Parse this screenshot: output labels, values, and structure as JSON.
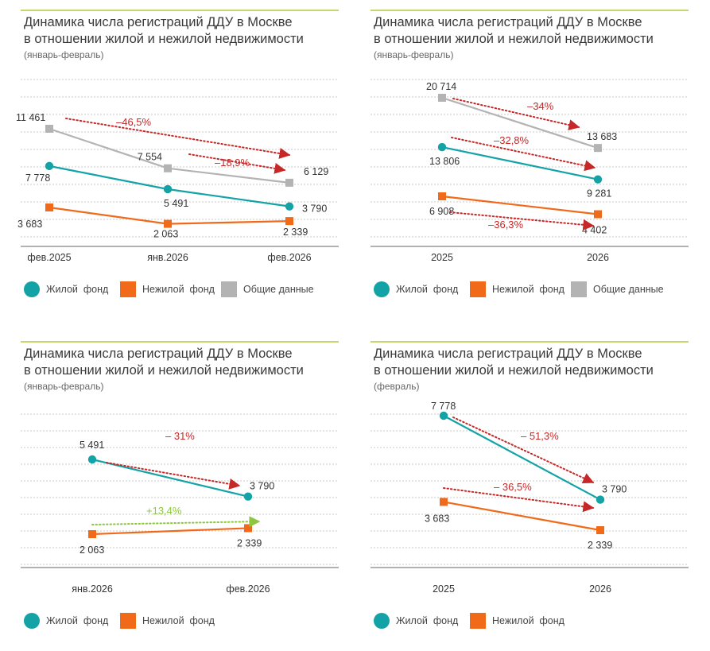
{
  "colors": {
    "housing": "#13a3a6",
    "nonhousing": "#f06a1a",
    "total": "#b3b3b3",
    "change_down": "#c62828",
    "change_up": "#8dc63f",
    "grid": "#c8c8c8"
  },
  "legend": {
    "housing": "Жилой  фонд",
    "nonhousing": "Нежилой  фонд",
    "total": "Общие данные"
  },
  "panels": [
    {
      "title_line1": "Динамика числа регистраций ДДУ в Москве",
      "title_line2": "в отношении жилой и нежилой недвижимости",
      "subtitle": "(январь-февраль)"
    },
    {
      "title_line1": "Динамика числа регистраций ДДУ в Москве",
      "title_line2": "в отношении жилой и нежилой недвижимости",
      "subtitle": "(январь-февраль)"
    },
    {
      "title_line1": "Динамика числа регистраций ДДУ в Москве",
      "title_line2": "в отношении жилой и нежилой недвижимости",
      "subtitle": "(январь-февраль)"
    },
    {
      "title_line1": "Динамика числа регистраций ДДУ в Москве",
      "title_line2": "в отношении жилой и нежилой недвижимости",
      "subtitle": "(февраль)"
    }
  ],
  "chart_data": [
    {
      "type": "line",
      "title": "Динамика числа регистраций ДДУ в Москве в отношении жилой и нежилой недвижимости (январь-февраль)",
      "categories": [
        "фев.2025",
        "янв.2026",
        "фев.2026"
      ],
      "series": [
        {
          "name": "Общие данные",
          "key": "total",
          "values": [
            11461,
            7554,
            6129
          ],
          "labels": [
            "11 461",
            "7 554",
            "6 129"
          ]
        },
        {
          "name": "Жилой  фонд",
          "key": "housing",
          "values": [
            7778,
            5491,
            3790
          ],
          "labels": [
            "7 778",
            "5 491",
            "3 790"
          ]
        },
        {
          "name": "Нежилой  фонд",
          "key": "nonhousing",
          "values": [
            3683,
            2063,
            2339
          ],
          "labels": [
            "3 683",
            "2 063",
            "2 339"
          ]
        }
      ],
      "annotations": [
        {
          "text": "–46,5%",
          "direction": "down"
        },
        {
          "text": "–18,9%",
          "direction": "down"
        }
      ],
      "legend": [
        "Жилой  фонд",
        "Нежилой  фонд",
        "Общие данные"
      ]
    },
    {
      "type": "line",
      "title": "Динамика числа регистраций ДДУ в Москве в отношении жилой и нежилой недвижимости (январь-февраль)",
      "categories": [
        "2025",
        "2026"
      ],
      "series": [
        {
          "name": "Общие данные",
          "key": "total",
          "values": [
            20714,
            13683
          ],
          "labels": [
            "20 714",
            "13 683"
          ]
        },
        {
          "name": "Жилой  фонд",
          "key": "housing",
          "values": [
            13806,
            9281
          ],
          "labels": [
            "13 806",
            "9 281"
          ]
        },
        {
          "name": "Нежилой  фонд",
          "key": "nonhousing",
          "values": [
            6908,
            4402
          ],
          "labels": [
            "6 908",
            "4 402"
          ]
        }
      ],
      "annotations": [
        {
          "text": "–34%",
          "direction": "down"
        },
        {
          "text": "–32,8%",
          "direction": "down"
        },
        {
          "text": "–36,3%",
          "direction": "down"
        }
      ],
      "legend": [
        "Жилой  фонд",
        "Нежилой  фонд",
        "Общие данные"
      ]
    },
    {
      "type": "line",
      "title": "Динамика числа регистраций ДДУ в Москве в отношении жилой и нежилой недвижимости (январь-февраль)",
      "categories": [
        "янв.2026",
        "фев.2026"
      ],
      "series": [
        {
          "name": "Жилой  фонд",
          "key": "housing",
          "values": [
            5491,
            3790
          ],
          "labels": [
            "5 491",
            "3 790"
          ]
        },
        {
          "name": "Нежилой  фонд",
          "key": "nonhousing",
          "values": [
            2063,
            2339
          ],
          "labels": [
            "2 063",
            "2 339"
          ]
        }
      ],
      "annotations": [
        {
          "text": "– 31%",
          "direction": "down"
        },
        {
          "text": "+13,4%",
          "direction": "up"
        }
      ],
      "legend": [
        "Жилой  фонд",
        "Нежилой  фонд"
      ]
    },
    {
      "type": "line",
      "title": "Динамика числа регистраций ДДУ в Москве в отношении жилой и нежилой недвижимости (февраль)",
      "categories": [
        "2025",
        "2026"
      ],
      "series": [
        {
          "name": "Жилой  фонд",
          "key": "housing",
          "values": [
            7778,
            3790
          ],
          "labels": [
            "7 778",
            "3 790"
          ]
        },
        {
          "name": "Нежилой  фонд",
          "key": "nonhousing",
          "values": [
            3683,
            2339
          ],
          "labels": [
            "3 683",
            "2 339"
          ]
        }
      ],
      "annotations": [
        {
          "text": "– 51,3%",
          "direction": "down"
        },
        {
          "text": "– 36,5%",
          "direction": "down"
        }
      ],
      "legend": [
        "Жилой  фонд",
        "Нежилой  фонд"
      ]
    }
  ]
}
